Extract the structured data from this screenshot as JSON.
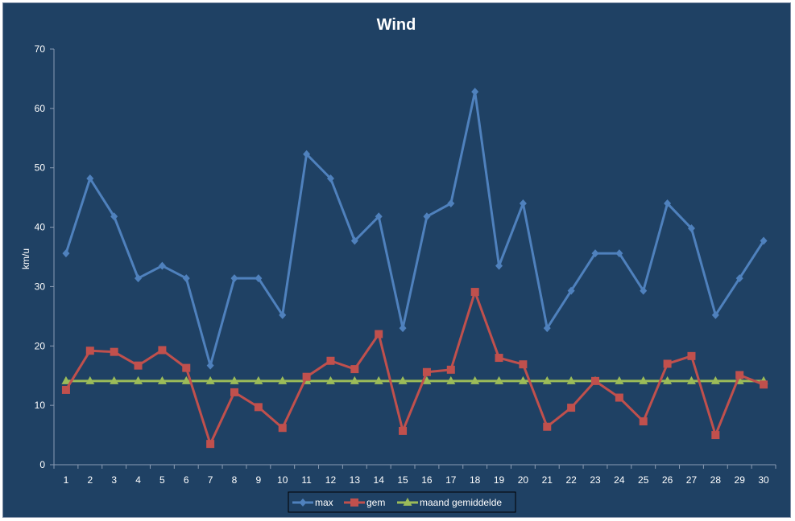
{
  "chart_data": {
    "type": "line",
    "title": "Wind",
    "xlabel": "",
    "ylabel": "km/u",
    "ylim": [
      0,
      70
    ],
    "yticks": [
      0,
      10,
      20,
      30,
      40,
      50,
      60,
      70
    ],
    "categories": [
      "1",
      "2",
      "3",
      "4",
      "5",
      "6",
      "7",
      "8",
      "9",
      "10",
      "11",
      "12",
      "13",
      "14",
      "15",
      "16",
      "17",
      "18",
      "19",
      "20",
      "21",
      "22",
      "23",
      "24",
      "25",
      "26",
      "27",
      "28",
      "29",
      "30"
    ],
    "legend_position": "bottom",
    "grid": false,
    "series": [
      {
        "name": "max",
        "color": "#4f81bd",
        "marker": "diamond",
        "values": [
          35.6,
          48.2,
          41.8,
          31.4,
          33.5,
          31.4,
          16.7,
          31.4,
          31.4,
          25.2,
          52.3,
          48.2,
          37.7,
          41.8,
          23.0,
          41.8,
          44.0,
          62.8,
          33.5,
          44.0,
          23.0,
          29.3,
          35.6,
          35.6,
          29.3,
          44.0,
          39.8,
          25.2,
          31.4,
          37.7
        ]
      },
      {
        "name": "gem",
        "color": "#c0504d",
        "marker": "square",
        "values": [
          12.6,
          19.2,
          19.0,
          16.7,
          19.3,
          16.3,
          3.5,
          12.2,
          9.7,
          6.2,
          14.8,
          17.5,
          16.1,
          22.0,
          5.7,
          15.6,
          16.0,
          29.1,
          18.0,
          16.9,
          6.4,
          9.6,
          14.1,
          11.3,
          7.3,
          17.0,
          18.3,
          5.0,
          15.1,
          13.5
        ]
      },
      {
        "name": "maand gemiddelde",
        "color": "#9bbb59",
        "marker": "triangle",
        "values": [
          14.1,
          14.1,
          14.1,
          14.1,
          14.1,
          14.1,
          14.1,
          14.1,
          14.1,
          14.1,
          14.1,
          14.1,
          14.1,
          14.1,
          14.1,
          14.1,
          14.1,
          14.1,
          14.1,
          14.1,
          14.1,
          14.1,
          14.1,
          14.1,
          14.1,
          14.1,
          14.1,
          14.1,
          14.1,
          14.1
        ]
      }
    ]
  }
}
